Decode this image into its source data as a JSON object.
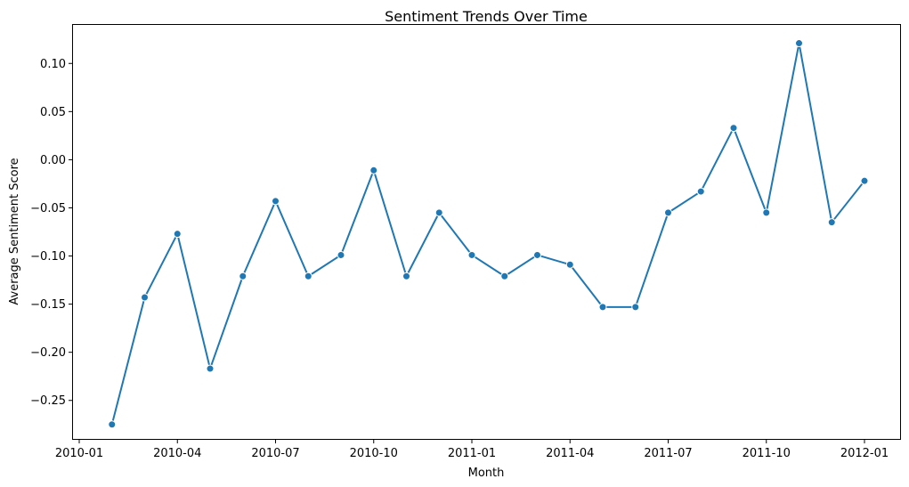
{
  "chart_data": {
    "type": "line",
    "title": "Sentiment Trends Over Time",
    "xlabel": "Month",
    "ylabel": "Average Sentiment Score",
    "x_tick_labels": [
      "2010-01",
      "2010-04",
      "2010-07",
      "2010-10",
      "2011-01",
      "2011-04",
      "2011-07",
      "2011-10",
      "2012-01"
    ],
    "y_tick_labels": [
      "−0.25",
      "−0.20",
      "−0.15",
      "−0.10",
      "−0.05",
      "0.00",
      "0.05",
      "0.10"
    ],
    "ylim": [
      -0.29,
      0.14
    ],
    "grid": false,
    "color": "#1f77b4",
    "series": [
      {
        "x": [
          "2010-02",
          "2010-03",
          "2010-04",
          "2010-05",
          "2010-06",
          "2010-07",
          "2010-08",
          "2010-09",
          "2010-10",
          "2010-11",
          "2010-12",
          "2011-01",
          "2011-02",
          "2011-03",
          "2011-04",
          "2011-05",
          "2011-06",
          "2011-07",
          "2011-08",
          "2011-09",
          "2011-10",
          "2011-11",
          "2011-12",
          "2012-01"
        ],
        "values": [
          -0.275,
          -0.143,
          -0.077,
          -0.217,
          -0.121,
          -0.043,
          -0.121,
          -0.099,
          -0.011,
          -0.121,
          -0.055,
          -0.099,
          -0.121,
          -0.099,
          -0.109,
          -0.153,
          -0.153,
          -0.055,
          -0.033,
          0.033,
          -0.055,
          0.121,
          -0.065,
          -0.022
        ]
      }
    ]
  }
}
